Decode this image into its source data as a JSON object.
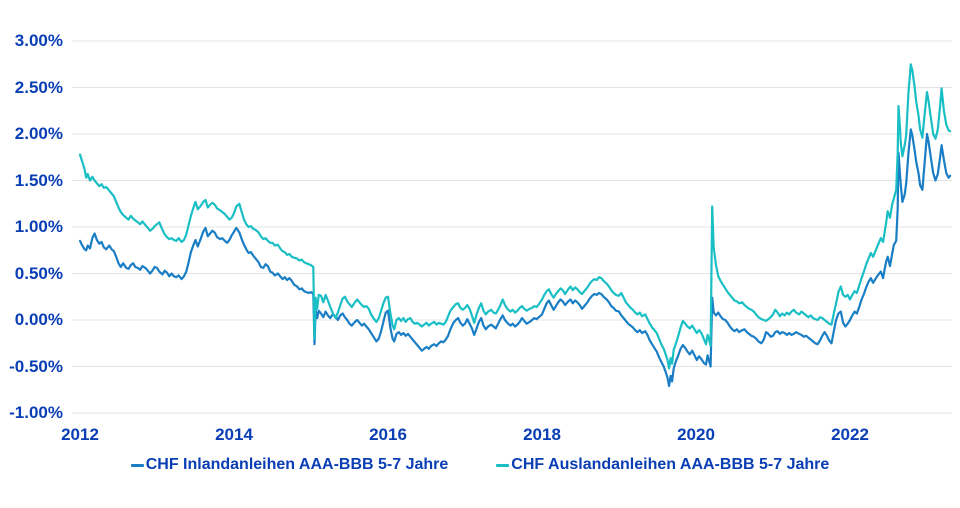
{
  "chart_data": {
    "type": "line",
    "title": "",
    "grid": "horizontal",
    "legend_position": "bottom",
    "colors": {
      "text": "#0a3eb5",
      "gridline": "#e1e5ea"
    },
    "x_axis": {
      "range": [
        2012,
        2023.35
      ],
      "ticks": [
        {
          "label": "2012",
          "value": 2012
        },
        {
          "label": "2014",
          "value": 2014
        },
        {
          "label": "2016",
          "value": 2016
        },
        {
          "label": "2018",
          "value": 2018
        },
        {
          "label": "2020",
          "value": 2020
        },
        {
          "label": "2022",
          "value": 2022
        }
      ]
    },
    "y_axis": {
      "unit": "%",
      "range": [
        -1,
        3
      ],
      "ticks": [
        {
          "label": "3.00%",
          "value": 3.0
        },
        {
          "label": "2.50%",
          "value": 2.5
        },
        {
          "label": "2.00%",
          "value": 2.0
        },
        {
          "label": "1.50%",
          "value": 1.5
        },
        {
          "label": "1.00%",
          "value": 1.0
        },
        {
          "label": "0.50%",
          "value": 0.5
        },
        {
          "label": "0.00%",
          "value": 0.0
        },
        {
          "label": "-0.50%",
          "value": -0.5
        },
        {
          "label": "-1.00%",
          "value": -1.0
        }
      ]
    },
    "x": [
      2012.0,
      2012.03,
      2012.06,
      2012.08,
      2012.1,
      2012.13,
      2012.16,
      2012.19,
      2012.22,
      2012.25,
      2012.28,
      2012.31,
      2012.34,
      2012.38,
      2012.41,
      2012.44,
      2012.47,
      2012.5,
      2012.53,
      2012.56,
      2012.6,
      2012.63,
      2012.66,
      2012.69,
      2012.72,
      2012.75,
      2012.78,
      2012.81,
      2012.85,
      2012.88,
      2012.91,
      2012.94,
      2012.97,
      2013.0,
      2013.03,
      2013.07,
      2013.1,
      2013.13,
      2013.16,
      2013.19,
      2013.22,
      2013.25,
      2013.28,
      2013.32,
      2013.35,
      2013.38,
      2013.41,
      2013.44,
      2013.47,
      2013.5,
      2013.53,
      2013.57,
      2013.6,
      2013.63,
      2013.66,
      2013.69,
      2013.72,
      2013.75,
      2013.78,
      2013.82,
      2013.85,
      2013.88,
      2013.91,
      2013.94,
      2013.97,
      2014.0,
      2014.03,
      2014.07,
      2014.1,
      2014.13,
      2014.16,
      2014.19,
      2014.22,
      2014.25,
      2014.28,
      2014.32,
      2014.35,
      2014.38,
      2014.41,
      2014.44,
      2014.47,
      2014.5,
      2014.53,
      2014.57,
      2014.6,
      2014.63,
      2014.66,
      2014.69,
      2014.72,
      2014.75,
      2014.78,
      2014.82,
      2014.85,
      2014.88,
      2014.91,
      2014.94,
      2014.97,
      2015.0,
      2015.03,
      2015.045,
      2015.06,
      2015.08,
      2015.1,
      2015.13,
      2015.16,
      2015.19,
      2015.22,
      2015.25,
      2015.28,
      2015.32,
      2015.35,
      2015.38,
      2015.41,
      2015.44,
      2015.47,
      2015.5,
      2015.53,
      2015.57,
      2015.6,
      2015.63,
      2015.66,
      2015.69,
      2015.72,
      2015.75,
      2015.78,
      2015.82,
      2015.85,
      2015.88,
      2015.91,
      2015.94,
      2015.97,
      2016.0,
      2016.03,
      2016.06,
      2016.08,
      2016.11,
      2016.14,
      2016.17,
      2016.2,
      2016.23,
      2016.26,
      2016.29,
      2016.32,
      2016.35,
      2016.38,
      2016.41,
      2016.44,
      2016.47,
      2016.5,
      2016.53,
      2016.56,
      2016.6,
      2016.63,
      2016.66,
      2016.69,
      2016.72,
      2016.75,
      2016.78,
      2016.81,
      2016.85,
      2016.88,
      2016.91,
      2016.94,
      2016.97,
      2017.0,
      2017.03,
      2017.06,
      2017.09,
      2017.12,
      2017.15,
      2017.18,
      2017.21,
      2017.24,
      2017.27,
      2017.3,
      2017.34,
      2017.37,
      2017.4,
      2017.43,
      2017.46,
      2017.49,
      2017.52,
      2017.55,
      2017.59,
      2017.62,
      2017.65,
      2017.68,
      2017.71,
      2017.74,
      2017.77,
      2017.8,
      2017.84,
      2017.87,
      2017.9,
      2017.93,
      2017.96,
      2018.0,
      2018.03,
      2018.06,
      2018.09,
      2018.12,
      2018.15,
      2018.18,
      2018.21,
      2018.24,
      2018.27,
      2018.3,
      2018.34,
      2018.37,
      2018.4,
      2018.43,
      2018.46,
      2018.49,
      2018.52,
      2018.55,
      2018.59,
      2018.62,
      2018.65,
      2018.68,
      2018.71,
      2018.74,
      2018.77,
      2018.8,
      2018.84,
      2018.87,
      2018.9,
      2018.93,
      2018.96,
      2019.0,
      2019.03,
      2019.06,
      2019.09,
      2019.12,
      2019.15,
      2019.18,
      2019.21,
      2019.24,
      2019.27,
      2019.3,
      2019.34,
      2019.37,
      2019.4,
      2019.43,
      2019.46,
      2019.49,
      2019.52,
      2019.55,
      2019.58,
      2019.61,
      2019.63,
      2019.65,
      2019.67,
      2019.69,
      2019.71,
      2019.74,
      2019.77,
      2019.8,
      2019.83,
      2019.86,
      2019.89,
      2019.92,
      2019.95,
      2019.98,
      2020.01,
      2020.04,
      2020.07,
      2020.1,
      2020.13,
      2020.15,
      2020.17,
      2020.19,
      2020.21,
      2020.23,
      2020.26,
      2020.29,
      2020.32,
      2020.35,
      2020.38,
      2020.41,
      2020.44,
      2020.47,
      2020.5,
      2020.53,
      2020.56,
      2020.6,
      2020.63,
      2020.66,
      2020.69,
      2020.72,
      2020.75,
      2020.78,
      2020.81,
      2020.85,
      2020.88,
      2020.91,
      2020.94,
      2020.97,
      2021.0,
      2021.03,
      2021.06,
      2021.09,
      2021.12,
      2021.15,
      2021.18,
      2021.21,
      2021.24,
      2021.27,
      2021.3,
      2021.34,
      2021.37,
      2021.4,
      2021.43,
      2021.46,
      2021.49,
      2021.52,
      2021.55,
      2021.58,
      2021.61,
      2021.64,
      2021.67,
      2021.7,
      2021.73,
      2021.76,
      2021.79,
      2021.82,
      2021.85,
      2021.88,
      2021.91,
      2021.94,
      2021.97,
      2022.0,
      2022.03,
      2022.06,
      2022.09,
      2022.12,
      2022.15,
      2022.18,
      2022.21,
      2022.24,
      2022.27,
      2022.3,
      2022.33,
      2022.36,
      2022.4,
      2022.43,
      2022.45,
      2022.47,
      2022.49,
      2022.52,
      2022.55,
      2022.57,
      2022.6,
      2022.62,
      2022.63,
      2022.65,
      2022.66,
      2022.68,
      2022.71,
      2022.73,
      2022.76,
      2022.79,
      2022.81,
      2022.84,
      2022.86,
      2022.89,
      2022.91,
      2022.94,
      2022.97,
      2023.0,
      2023.02,
      2023.05,
      2023.08,
      2023.11,
      2023.14,
      2023.17,
      2023.19,
      2023.22,
      2023.25,
      2023.28,
      2023.3
    ],
    "series": [
      {
        "name": "CHF Inlandanleihen AAA-BBB 5-7 Jahre",
        "color": "#1a7ec5",
        "values": [
          0.85,
          0.8,
          0.76,
          0.75,
          0.8,
          0.77,
          0.88,
          0.93,
          0.86,
          0.82,
          0.84,
          0.78,
          0.76,
          0.8,
          0.76,
          0.74,
          0.68,
          0.61,
          0.57,
          0.61,
          0.56,
          0.55,
          0.59,
          0.61,
          0.57,
          0.56,
          0.54,
          0.58,
          0.56,
          0.53,
          0.5,
          0.53,
          0.57,
          0.56,
          0.52,
          0.49,
          0.53,
          0.51,
          0.47,
          0.5,
          0.47,
          0.46,
          0.48,
          0.44,
          0.47,
          0.52,
          0.62,
          0.73,
          0.8,
          0.86,
          0.79,
          0.88,
          0.95,
          0.99,
          0.9,
          0.93,
          0.96,
          0.94,
          0.89,
          0.87,
          0.88,
          0.85,
          0.83,
          0.86,
          0.91,
          0.95,
          0.99,
          0.94,
          0.87,
          0.81,
          0.76,
          0.72,
          0.73,
          0.69,
          0.66,
          0.62,
          0.57,
          0.56,
          0.6,
          0.58,
          0.52,
          0.51,
          0.48,
          0.5,
          0.47,
          0.44,
          0.46,
          0.43,
          0.45,
          0.42,
          0.38,
          0.36,
          0.33,
          0.34,
          0.31,
          0.3,
          0.29,
          0.3,
          0.28,
          -0.26,
          0.11,
          0.02,
          0.1,
          0.07,
          0.03,
          0.09,
          0.05,
          0.02,
          0.06,
          0.04,
          0.0,
          0.05,
          0.07,
          0.03,
          0.0,
          -0.04,
          -0.06,
          -0.02,
          0.0,
          -0.03,
          -0.06,
          -0.04,
          -0.07,
          -0.1,
          -0.14,
          -0.19,
          -0.23,
          -0.2,
          -0.12,
          -0.02,
          0.08,
          0.1,
          -0.08,
          -0.2,
          -0.23,
          -0.15,
          -0.13,
          -0.16,
          -0.14,
          -0.17,
          -0.15,
          -0.18,
          -0.21,
          -0.24,
          -0.27,
          -0.3,
          -0.33,
          -0.31,
          -0.29,
          -0.31,
          -0.28,
          -0.26,
          -0.28,
          -0.25,
          -0.23,
          -0.24,
          -0.21,
          -0.17,
          -0.1,
          -0.03,
          0.0,
          0.02,
          -0.03,
          -0.06,
          -0.04,
          0.01,
          -0.04,
          -0.09,
          -0.16,
          -0.09,
          -0.02,
          0.02,
          -0.06,
          -0.1,
          -0.07,
          -0.05,
          -0.07,
          -0.09,
          -0.04,
          0.01,
          0.05,
          0.0,
          -0.03,
          -0.06,
          -0.04,
          -0.07,
          -0.05,
          -0.02,
          0.02,
          -0.01,
          -0.04,
          -0.02,
          0.0,
          0.02,
          0.01,
          0.03,
          0.06,
          0.12,
          0.18,
          0.21,
          0.16,
          0.11,
          0.15,
          0.19,
          0.22,
          0.2,
          0.16,
          0.2,
          0.22,
          0.18,
          0.21,
          0.19,
          0.16,
          0.12,
          0.15,
          0.19,
          0.23,
          0.26,
          0.28,
          0.27,
          0.29,
          0.28,
          0.25,
          0.22,
          0.19,
          0.15,
          0.13,
          0.1,
          0.09,
          0.05,
          0.02,
          -0.01,
          -0.04,
          -0.06,
          -0.08,
          -0.11,
          -0.13,
          -0.11,
          -0.14,
          -0.12,
          -0.16,
          -0.22,
          -0.26,
          -0.3,
          -0.34,
          -0.4,
          -0.45,
          -0.5,
          -0.57,
          -0.62,
          -0.71,
          -0.6,
          -0.66,
          -0.52,
          -0.44,
          -0.38,
          -0.31,
          -0.27,
          -0.3,
          -0.34,
          -0.37,
          -0.33,
          -0.38,
          -0.43,
          -0.39,
          -0.42,
          -0.46,
          -0.48,
          -0.38,
          -0.44,
          -0.5,
          0.24,
          0.08,
          0.05,
          0.08,
          0.04,
          0.01,
          0.0,
          -0.03,
          -0.07,
          -0.1,
          -0.12,
          -0.1,
          -0.13,
          -0.11,
          -0.1,
          -0.13,
          -0.15,
          -0.17,
          -0.18,
          -0.2,
          -0.23,
          -0.25,
          -0.21,
          -0.13,
          -0.15,
          -0.18,
          -0.17,
          -0.13,
          -0.12,
          -0.15,
          -0.13,
          -0.14,
          -0.16,
          -0.14,
          -0.16,
          -0.15,
          -0.13,
          -0.15,
          -0.16,
          -0.18,
          -0.17,
          -0.19,
          -0.21,
          -0.23,
          -0.25,
          -0.26,
          -0.22,
          -0.17,
          -0.13,
          -0.17,
          -0.22,
          -0.25,
          -0.12,
          0.0,
          0.07,
          0.09,
          -0.03,
          -0.07,
          -0.04,
          0.0,
          0.05,
          0.09,
          0.07,
          0.14,
          0.22,
          0.28,
          0.35,
          0.41,
          0.45,
          0.4,
          0.44,
          0.48,
          0.52,
          0.45,
          0.55,
          0.63,
          0.68,
          0.58,
          0.72,
          0.81,
          0.85,
          1.2,
          1.8,
          1.55,
          1.45,
          1.27,
          1.35,
          1.47,
          1.8,
          2.05,
          1.98,
          1.82,
          1.7,
          1.58,
          1.45,
          1.4,
          1.7,
          2.0,
          1.92,
          1.75,
          1.58,
          1.5,
          1.57,
          1.75,
          1.88,
          1.72,
          1.58,
          1.53,
          1.55
        ]
      },
      {
        "name": "CHF Auslandanleihen AAA-BBB 5-7 Jahre",
        "color": "#19bfc4",
        "values": [
          1.78,
          1.7,
          1.62,
          1.53,
          1.57,
          1.5,
          1.54,
          1.5,
          1.47,
          1.44,
          1.46,
          1.42,
          1.43,
          1.39,
          1.36,
          1.33,
          1.27,
          1.21,
          1.16,
          1.13,
          1.1,
          1.08,
          1.12,
          1.09,
          1.07,
          1.05,
          1.03,
          1.06,
          1.02,
          0.99,
          0.96,
          0.98,
          1.01,
          1.03,
          1.05,
          0.97,
          0.92,
          0.89,
          0.87,
          0.88,
          0.86,
          0.85,
          0.88,
          0.84,
          0.86,
          0.92,
          1.02,
          1.12,
          1.2,
          1.27,
          1.19,
          1.23,
          1.27,
          1.29,
          1.21,
          1.24,
          1.26,
          1.24,
          1.2,
          1.18,
          1.16,
          1.14,
          1.11,
          1.08,
          1.1,
          1.15,
          1.22,
          1.25,
          1.16,
          1.08,
          1.03,
          1.0,
          1.01,
          0.98,
          0.97,
          0.94,
          0.9,
          0.87,
          0.88,
          0.85,
          0.83,
          0.83,
          0.8,
          0.81,
          0.77,
          0.74,
          0.73,
          0.7,
          0.71,
          0.68,
          0.67,
          0.66,
          0.64,
          0.65,
          0.62,
          0.61,
          0.6,
          0.59,
          0.57,
          -0.2,
          0.24,
          0.12,
          0.27,
          0.26,
          0.19,
          0.27,
          0.21,
          0.14,
          0.08,
          0.02,
          0.08,
          0.16,
          0.23,
          0.25,
          0.2,
          0.17,
          0.14,
          0.19,
          0.22,
          0.19,
          0.16,
          0.14,
          0.15,
          0.12,
          0.06,
          0.01,
          -0.02,
          0.02,
          0.1,
          0.18,
          0.24,
          0.25,
          0.08,
          -0.06,
          -0.1,
          0.0,
          0.02,
          -0.01,
          0.02,
          -0.02,
          0.01,
          0.02,
          -0.02,
          -0.04,
          -0.03,
          -0.05,
          -0.07,
          -0.05,
          -0.03,
          -0.06,
          -0.04,
          -0.02,
          -0.05,
          -0.03,
          -0.04,
          -0.05,
          -0.02,
          0.04,
          0.1,
          0.14,
          0.17,
          0.18,
          0.13,
          0.11,
          0.13,
          0.16,
          0.12,
          0.05,
          -0.03,
          0.06,
          0.13,
          0.18,
          0.1,
          0.06,
          0.09,
          0.11,
          0.08,
          0.07,
          0.11,
          0.16,
          0.22,
          0.16,
          0.12,
          0.09,
          0.11,
          0.08,
          0.1,
          0.13,
          0.15,
          0.12,
          0.1,
          0.12,
          0.13,
          0.15,
          0.14,
          0.17,
          0.22,
          0.27,
          0.31,
          0.33,
          0.28,
          0.24,
          0.28,
          0.31,
          0.34,
          0.32,
          0.28,
          0.33,
          0.36,
          0.32,
          0.35,
          0.33,
          0.3,
          0.28,
          0.31,
          0.35,
          0.39,
          0.42,
          0.44,
          0.43,
          0.46,
          0.45,
          0.42,
          0.39,
          0.36,
          0.32,
          0.29,
          0.27,
          0.26,
          0.29,
          0.24,
          0.19,
          0.16,
          0.13,
          0.11,
          0.08,
          0.06,
          0.08,
          0.04,
          0.06,
          0.01,
          -0.04,
          -0.08,
          -0.11,
          -0.14,
          -0.2,
          -0.26,
          -0.31,
          -0.38,
          -0.43,
          -0.52,
          -0.41,
          -0.47,
          -0.32,
          -0.25,
          -0.17,
          -0.08,
          -0.01,
          -0.04,
          -0.07,
          -0.09,
          -0.06,
          -0.1,
          -0.14,
          -0.11,
          -0.14,
          -0.2,
          -0.26,
          -0.16,
          -0.21,
          -0.28,
          1.22,
          0.78,
          0.59,
          0.47,
          0.42,
          0.38,
          0.34,
          0.3,
          0.27,
          0.24,
          0.21,
          0.2,
          0.18,
          0.19,
          0.16,
          0.14,
          0.12,
          0.11,
          0.09,
          0.06,
          0.03,
          0.01,
          0.0,
          -0.01,
          0.01,
          0.03,
          0.06,
          0.11,
          0.08,
          0.04,
          0.07,
          0.05,
          0.08,
          0.06,
          0.09,
          0.11,
          0.08,
          0.06,
          0.09,
          0.07,
          0.05,
          0.03,
          0.05,
          0.02,
          0.01,
          0.0,
          0.03,
          0.02,
          0.0,
          -0.02,
          -0.04,
          -0.05,
          0.07,
          0.18,
          0.3,
          0.36,
          0.27,
          0.25,
          0.27,
          0.22,
          0.27,
          0.31,
          0.29,
          0.37,
          0.45,
          0.52,
          0.6,
          0.66,
          0.72,
          0.68,
          0.74,
          0.8,
          0.88,
          0.84,
          0.95,
          1.05,
          1.17,
          1.1,
          1.25,
          1.31,
          1.4,
          1.8,
          2.3,
          2.05,
          1.9,
          1.76,
          1.88,
          1.99,
          2.45,
          2.75,
          2.68,
          2.5,
          2.35,
          2.2,
          2.05,
          1.96,
          2.22,
          2.45,
          2.36,
          2.18,
          2.0,
          1.95,
          2.05,
          2.3,
          2.49,
          2.25,
          2.1,
          2.04,
          2.03
        ]
      }
    ]
  }
}
